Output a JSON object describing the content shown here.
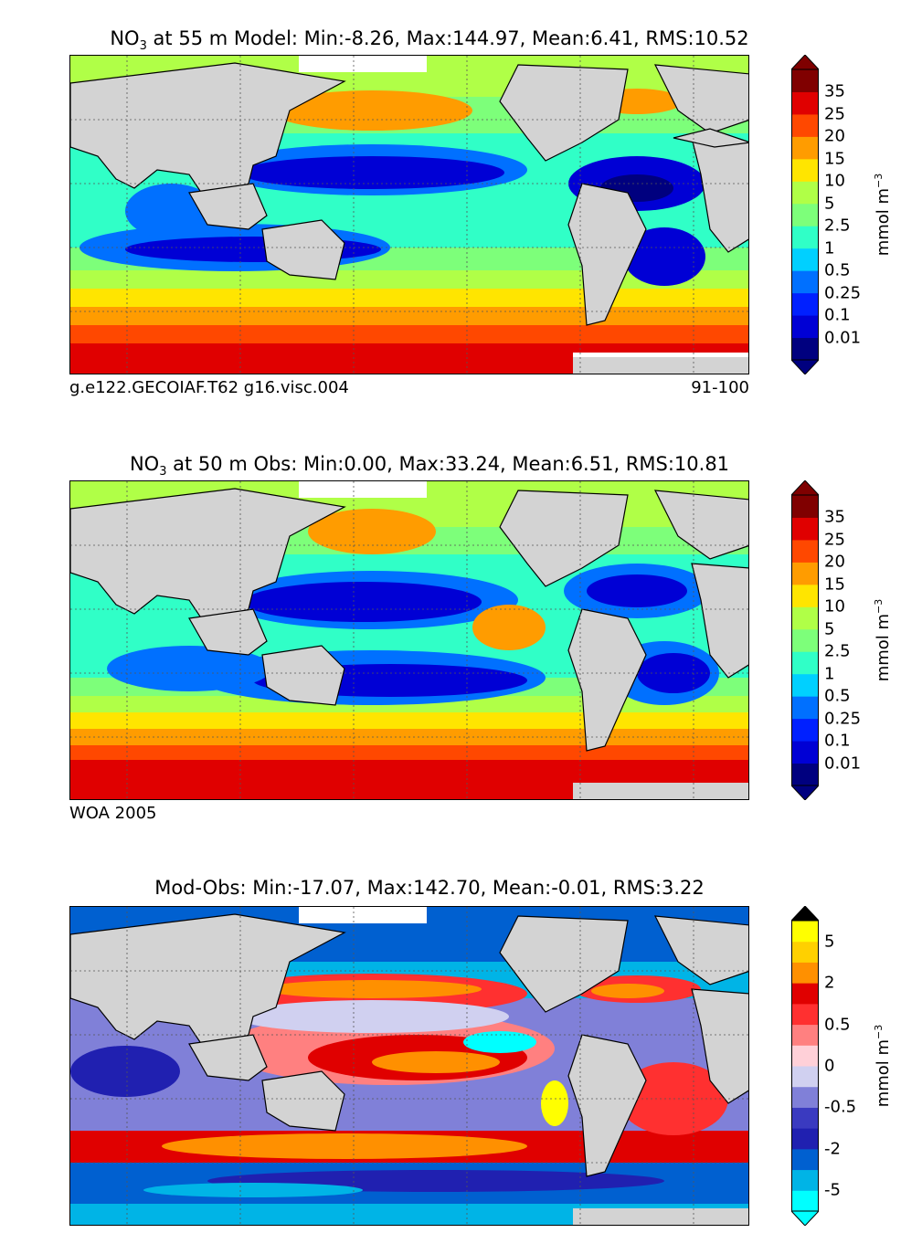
{
  "panels": [
    {
      "title_prefix": "NO",
      "title_sub": "3",
      "title_rest": " at 55 m Model: Min:-8.26, Max:144.97, Mean:6.41, RMS:10.52",
      "caption_left": "g.e122.GECOIAF.T62 g16.visc.004",
      "caption_right": "91-100",
      "colorbar": {
        "ticks": [
          "0.01",
          "0.1",
          "0.25",
          "0.5",
          "1",
          "2.5",
          "5",
          "10",
          "15",
          "20",
          "25",
          "35"
        ],
        "colors": [
          "#00007f",
          "#0000d5",
          "#0020ff",
          "#0070ff",
          "#00d0ff",
          "#30ffc7",
          "#7dff7a",
          "#b0ff47",
          "#ffe500",
          "#ff9c00",
          "#ff4800",
          "#e00000",
          "#800000"
        ],
        "under": "#00007f",
        "over": "#7f0000",
        "unit": "mmol m",
        "unit_exp": "−3"
      }
    },
    {
      "title_prefix": "NO",
      "title_sub": "3",
      "title_rest": " at 50 m Obs: Min:0.00, Max:33.24, Mean:6.51, RMS:10.81",
      "caption_left": "WOA 2005",
      "caption_right": "",
      "colorbar": {
        "ticks": [
          "0.01",
          "0.1",
          "0.25",
          "0.5",
          "1",
          "2.5",
          "5",
          "10",
          "15",
          "20",
          "25",
          "35"
        ],
        "colors": [
          "#00007f",
          "#0000d5",
          "#0020ff",
          "#0070ff",
          "#00d0ff",
          "#30ffc7",
          "#7dff7a",
          "#b0ff47",
          "#ffe500",
          "#ff9c00",
          "#ff4800",
          "#e00000",
          "#800000"
        ],
        "under": "#00007f",
        "over": "#7f0000",
        "unit": "mmol m",
        "unit_exp": "−3"
      }
    },
    {
      "title_prefix": "",
      "title_sub": "",
      "title_rest": "Mod-Obs: Min:-17.07, Max:142.70, Mean:-0.01, RMS:3.22",
      "caption_left": "",
      "caption_right": "",
      "colorbar": {
        "ticks": [
          "-5",
          "-2",
          "-0.5",
          "0",
          "0.5",
          "2",
          "5"
        ],
        "colors": [
          "#00ffff",
          "#00b4e6",
          "#0060d0",
          "#2020b0",
          "#3a3ac0",
          "#8080d8",
          "#d0d0f0",
          "#ffd0d8",
          "#ff8080",
          "#ff3030",
          "#e00000",
          "#ff9000",
          "#ffd000",
          "#ffff00"
        ],
        "under": "#00ffff",
        "over": "#000000",
        "unit": "mmol m",
        "unit_exp": "−3"
      }
    }
  ],
  "map_colors": {
    "land": "#d3d3d3",
    "ice": "#ffffff"
  }
}
